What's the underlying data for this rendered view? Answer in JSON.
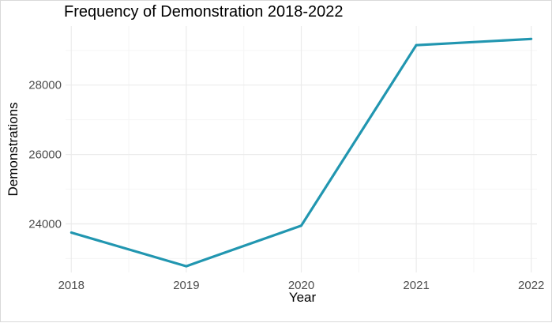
{
  "chart_data": {
    "type": "line",
    "title": "Frequency of Demonstration 2018-2022",
    "xlabel": "Year",
    "ylabel": "Demonstrations",
    "x": [
      2018,
      2019,
      2020,
      2021,
      2022
    ],
    "xticks": [
      "2018",
      "2019",
      "2020",
      "2021",
      "2022"
    ],
    "yticks": [
      24000,
      26000,
      28000
    ],
    "ytick_labels": [
      "24000",
      "26000",
      "28000"
    ],
    "series": [
      {
        "values": [
          23750,
          22780,
          23950,
          29150,
          29330
        ]
      }
    ],
    "xlim": [
      2017.95,
      2022.05
    ],
    "ylim": [
      22600,
      29700
    ],
    "grid": true,
    "legend": "none",
    "colors": {
      "line": "#2196b0",
      "grid_major": "#ebebeb",
      "grid_minor": "#f5f5f5"
    }
  }
}
